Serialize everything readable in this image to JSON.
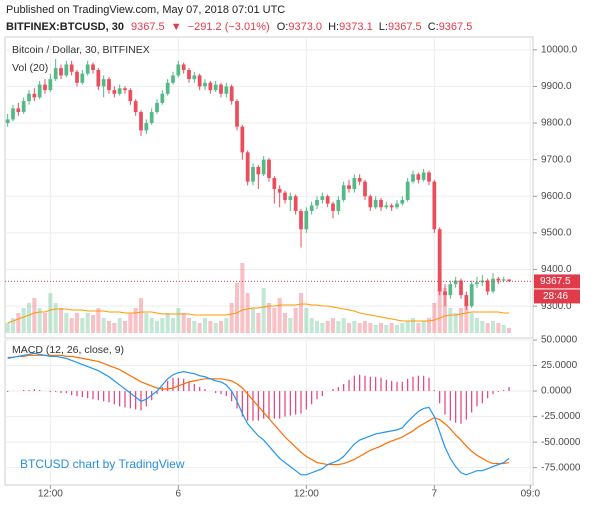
{
  "header": {
    "published": "Published on TradingView.com, May 07, 2018 07:01 UTC",
    "symbol": "BITFINEX:BTCUSD, 30",
    "last": "9367.5",
    "arrow": "▼",
    "change": "−291.2 (−3.01%)",
    "ohlc": [
      {
        "label": "O:",
        "value": "9373.0"
      },
      {
        "label": "H:",
        "value": "9373.1"
      },
      {
        "label": "L:",
        "value": "9367.5"
      },
      {
        "label": "C:",
        "value": "9367.5"
      }
    ]
  },
  "watermark": "BTCUSD chart by TradingView",
  "chart_data": [
    {
      "type": "candlestick",
      "title": "Bitcoin / Dollar, 30, BITFINEX",
      "x": [
        0,
        1,
        2,
        3,
        4,
        5,
        6,
        7,
        8,
        9,
        10,
        11,
        12,
        13,
        14,
        15,
        16,
        17,
        18,
        19,
        20,
        21,
        22,
        23,
        24,
        25,
        26,
        27,
        28,
        29,
        30,
        31,
        32,
        33,
        34,
        35,
        36,
        37,
        38,
        39,
        40,
        41,
        42,
        43,
        44,
        45,
        46,
        47,
        48,
        49,
        50,
        51,
        52,
        53,
        54,
        55,
        56,
        57,
        58,
        59,
        60,
        61,
        62,
        63,
        64,
        65,
        66,
        67,
        68,
        69,
        70,
        71,
        72,
        73,
        74,
        75,
        76,
        77,
        78,
        79,
        80,
        81,
        82,
        83,
        84,
        85,
        86,
        87,
        88,
        89,
        90,
        91,
        92,
        93,
        94
      ],
      "open": [
        9800,
        9810,
        9840,
        9830,
        9860,
        9880,
        9870,
        9905,
        9890,
        9920,
        9950,
        9930,
        9960,
        9940,
        9910,
        9935,
        9960,
        9945,
        9900,
        9920,
        9890,
        9880,
        9895,
        9890,
        9860,
        9830,
        9780,
        9800,
        9830,
        9855,
        9880,
        9910,
        9930,
        9960,
        9945,
        9920,
        9930,
        9900,
        9910,
        9890,
        9905,
        9880,
        9900,
        9860,
        9790,
        9720,
        9640,
        9680,
        9660,
        9700,
        9650,
        9620,
        9610,
        9590,
        9600,
        9560,
        9510,
        9560,
        9575,
        9590,
        9600,
        9580,
        9560,
        9590,
        9630,
        9620,
        9650,
        9640,
        9600,
        9570,
        9590,
        9570,
        9575,
        9570,
        9580,
        9590,
        9640,
        9660,
        9645,
        9665,
        9640,
        9510,
        9340,
        9330,
        9360,
        9370,
        9330,
        9300,
        9360,
        9365,
        9370,
        9340,
        9375,
        9370,
        9373
      ],
      "high": [
        9825,
        9850,
        9855,
        9870,
        9890,
        9895,
        9915,
        9920,
        9935,
        9975,
        9960,
        9970,
        9970,
        9945,
        9945,
        9970,
        9965,
        9950,
        9930,
        9925,
        9900,
        9905,
        9900,
        9895,
        9865,
        9835,
        9810,
        9840,
        9865,
        9890,
        9920,
        9940,
        9970,
        9965,
        9950,
        9940,
        9935,
        9920,
        9915,
        9915,
        9910,
        9910,
        9905,
        9865,
        9795,
        9725,
        9690,
        9685,
        9710,
        9705,
        9655,
        9630,
        9615,
        9610,
        9605,
        9565,
        9570,
        9585,
        9600,
        9610,
        9605,
        9585,
        9600,
        9640,
        9645,
        9660,
        9660,
        9645,
        9605,
        9600,
        9595,
        9585,
        9580,
        9590,
        9600,
        9650,
        9670,
        9665,
        9675,
        9670,
        9645,
        9515,
        9360,
        9370,
        9380,
        9375,
        9340,
        9370,
        9380,
        9385,
        9375,
        9390,
        9380,
        9380,
        9373.1
      ],
      "low": [
        9790,
        9805,
        9820,
        9825,
        9850,
        9860,
        9865,
        9880,
        9885,
        9915,
        9920,
        9925,
        9930,
        9900,
        9905,
        9930,
        9935,
        9890,
        9870,
        9880,
        9870,
        9875,
        9880,
        9850,
        9820,
        9765,
        9770,
        9795,
        9825,
        9850,
        9875,
        9905,
        9925,
        9935,
        9910,
        9910,
        9890,
        9890,
        9880,
        9885,
        9870,
        9870,
        9850,
        9780,
        9700,
        9630,
        9630,
        9620,
        9655,
        9640,
        9580,
        9570,
        9580,
        9560,
        9550,
        9460,
        9500,
        9550,
        9565,
        9580,
        9570,
        9540,
        9550,
        9585,
        9610,
        9610,
        9630,
        9590,
        9560,
        9565,
        9560,
        9565,
        9560,
        9565,
        9575,
        9585,
        9635,
        9635,
        9640,
        9630,
        9500,
        9330,
        9300,
        9320,
        9350,
        9320,
        9290,
        9295,
        9350,
        9355,
        9330,
        9335,
        9360,
        9365,
        9367.5
      ],
      "close": [
        9810,
        9840,
        9830,
        9860,
        9880,
        9870,
        9905,
        9890,
        9920,
        9950,
        9930,
        9960,
        9940,
        9910,
        9935,
        9960,
        9945,
        9900,
        9920,
        9890,
        9880,
        9895,
        9890,
        9860,
        9830,
        9780,
        9800,
        9830,
        9855,
        9880,
        9910,
        9930,
        9960,
        9945,
        9920,
        9930,
        9900,
        9910,
        9890,
        9905,
        9880,
        9900,
        9860,
        9790,
        9720,
        9640,
        9680,
        9660,
        9700,
        9650,
        9620,
        9610,
        9590,
        9600,
        9560,
        9510,
        9560,
        9575,
        9590,
        9600,
        9580,
        9560,
        9590,
        9630,
        9620,
        9650,
        9640,
        9600,
        9570,
        9590,
        9570,
        9575,
        9570,
        9580,
        9590,
        9640,
        9660,
        9645,
        9665,
        9640,
        9510,
        9340,
        9330,
        9360,
        9370,
        9330,
        9300,
        9360,
        9365,
        9370,
        9340,
        9375,
        9370,
        9373,
        9367.5
      ],
      "up_color": "#53b987",
      "down_color": "#eb4d5c",
      "volume": {
        "title": "Vol (20)",
        "values": [
          10,
          15,
          20,
          25,
          30,
          35,
          25,
          20,
          40,
          30,
          25,
          20,
          15,
          20,
          15,
          20,
          18,
          25,
          15,
          12,
          10,
          15,
          12,
          20,
          25,
          35,
          20,
          15,
          12,
          15,
          20,
          15,
          25,
          20,
          15,
          12,
          10,
          15,
          12,
          10,
          12,
          15,
          30,
          50,
          70,
          40,
          25,
          20,
          45,
          30,
          25,
          35,
          20,
          15,
          25,
          40,
          25,
          15,
          12,
          10,
          12,
          15,
          12,
          15,
          10,
          12,
          10,
          12,
          10,
          8,
          10,
          8,
          10,
          8,
          10,
          12,
          15,
          10,
          12,
          15,
          30,
          60,
          45,
          25,
          20,
          25,
          30,
          20,
          15,
          12,
          10,
          12,
          10,
          8,
          5
        ],
        "ma": [
          10,
          12,
          14,
          16,
          18,
          20,
          21,
          21,
          23,
          24,
          24,
          24,
          23,
          23,
          23,
          22,
          22,
          22,
          22,
          21,
          21,
          21,
          20,
          20,
          20,
          21,
          21,
          21,
          20,
          19,
          19,
          19,
          19,
          19,
          19,
          18,
          18,
          18,
          18,
          18,
          18,
          18,
          19,
          20,
          23,
          24,
          25,
          25,
          26,
          27,
          27,
          28,
          28,
          28,
          28,
          29,
          29,
          28,
          28,
          27,
          27,
          26,
          25,
          24,
          23,
          22,
          20,
          19,
          18,
          17,
          16,
          15,
          14,
          13,
          12,
          12,
          12,
          12,
          12,
          12,
          13,
          15,
          17,
          18,
          18,
          19,
          20,
          21,
          21,
          21,
          21,
          21,
          21,
          20,
          20
        ],
        "ma_color": "#ff9800"
      },
      "last_price": 9367.5,
      "last_price_color": "#e03b4a",
      "countdown": "28:46",
      "xlim": [
        -0.5,
        98.5
      ],
      "xticks": [
        {
          "value": 8,
          "label": "12:00"
        },
        {
          "value": 32,
          "label": "6"
        },
        {
          "value": 56,
          "label": "12:00"
        },
        {
          "value": 80,
          "label": "7"
        },
        {
          "value": 98,
          "label": "09:0"
        }
      ],
      "ylim": [
        9213,
        10035
      ],
      "yticks": [
        {
          "value": 9300,
          "label": "9300.0"
        },
        {
          "value": 9400,
          "label": "9400.0"
        },
        {
          "value": 9500,
          "label": "9500.0"
        },
        {
          "value": 9600,
          "label": "9600.0"
        },
        {
          "value": 9700,
          "label": "9700.0"
        },
        {
          "value": 9800,
          "label": "9800.0"
        },
        {
          "value": 9900,
          "label": "9900.0"
        },
        {
          "value": 10000,
          "label": "10000.0"
        }
      ],
      "grid": true
    },
    {
      "type": "macd",
      "title": "MACD (12, 26, close, 9)",
      "macd": {
        "color": "#2196f3",
        "values": [
          32,
          33,
          34,
          35,
          36,
          37,
          36,
          35,
          34,
          34,
          33,
          32,
          30,
          28,
          26,
          24,
          22,
          20,
          17,
          14,
          10,
          6,
          2,
          -2,
          -6,
          -10,
          -8,
          -4,
          0,
          6,
          12,
          16,
          18,
          19,
          18,
          17,
          15,
          14,
          12,
          10,
          9,
          6,
          0,
          -10,
          -22,
          -32,
          -38,
          -44,
          -48,
          -54,
          -60,
          -66,
          -70,
          -74,
          -78,
          -82,
          -82,
          -80,
          -78,
          -76,
          -72,
          -70,
          -68,
          -64,
          -58,
          -52,
          -48,
          -46,
          -44,
          -42,
          -41,
          -40,
          -39,
          -38,
          -36,
          -30,
          -25,
          -20,
          -17,
          -16,
          -25,
          -40,
          -55,
          -66,
          -74,
          -80,
          -82,
          -80,
          -78,
          -78,
          -76,
          -74,
          -72,
          -70,
          -66
        ]
      },
      "signal": {
        "color": "#ff6d00",
        "values": [
          33,
          33,
          34,
          34,
          35,
          35,
          35,
          35,
          35,
          35,
          35,
          34,
          34,
          33,
          32,
          31,
          30,
          29,
          27,
          25,
          23,
          21,
          18,
          15,
          12,
          9,
          7,
          5,
          3,
          2,
          2,
          3,
          5,
          7,
          9,
          10,
          11,
          12,
          12,
          12,
          12,
          11,
          10,
          7,
          3,
          -3,
          -9,
          -15,
          -21,
          -27,
          -33,
          -39,
          -45,
          -50,
          -55,
          -60,
          -64,
          -67,
          -70,
          -71,
          -72,
          -72,
          -72,
          -71,
          -69,
          -67,
          -64,
          -61,
          -58,
          -56,
          -54,
          -51,
          -49,
          -47,
          -45,
          -42,
          -39,
          -35,
          -32,
          -29,
          -26,
          -28,
          -32,
          -37,
          -43,
          -48,
          -54,
          -59,
          -63,
          -66,
          -69,
          -71,
          -71,
          -71,
          -70
        ]
      },
      "histogram": {
        "color": "#e2407a",
        "values": [
          -1,
          0,
          0,
          1,
          1,
          2,
          1,
          0,
          -1,
          -1,
          -2,
          -2,
          -4,
          -5,
          -6,
          -7,
          -8,
          -9,
          -10,
          -11,
          -13,
          -15,
          -16,
          -17,
          -18,
          -19,
          -15,
          -9,
          -3,
          4,
          10,
          13,
          13,
          12,
          9,
          7,
          4,
          2,
          0,
          -2,
          -3,
          -5,
          -10,
          -17,
          -25,
          -29,
          -29,
          -29,
          -27,
          -27,
          -27,
          -27,
          -25,
          -24,
          -23,
          -22,
          -18,
          -13,
          -8,
          -5,
          0,
          2,
          4,
          7,
          11,
          15,
          16,
          15,
          14,
          14,
          13,
          11,
          10,
          9,
          9,
          12,
          14,
          15,
          15,
          13,
          1,
          -12,
          -23,
          -29,
          -31,
          -32,
          -28,
          -21,
          -15,
          -12,
          -7,
          -3,
          -1,
          1,
          4
        ]
      },
      "ylim": [
        -92,
        50
      ],
      "yticks": [
        {
          "value": 50,
          "label": "50.0000"
        },
        {
          "value": 25,
          "label": "25.0000"
        },
        {
          "value": 0,
          "label": "0.0000"
        },
        {
          "value": -25,
          "label": "-25.0000"
        },
        {
          "value": -50,
          "label": "-50.0000"
        },
        {
          "value": -75,
          "label": "-75.0000"
        }
      ],
      "grid": true
    }
  ]
}
